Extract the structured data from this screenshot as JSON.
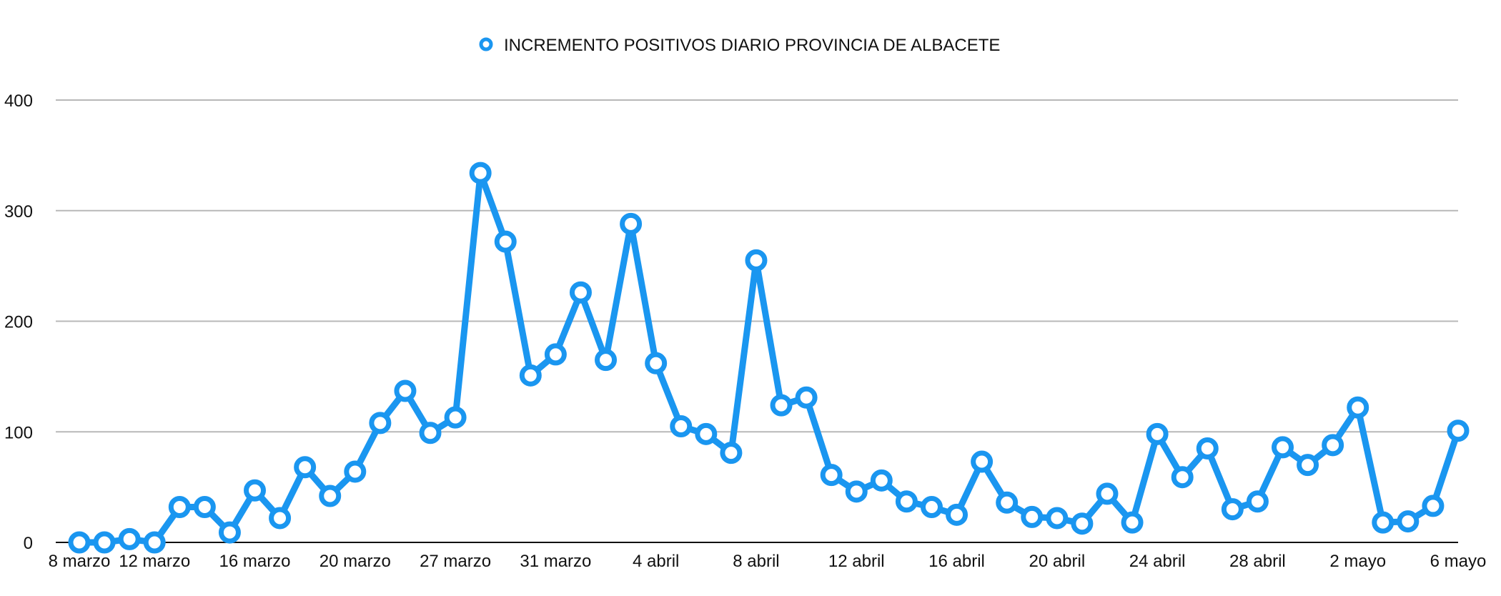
{
  "chart_data": {
    "type": "line",
    "title": "",
    "xlabel": "",
    "ylabel": "",
    "ylim": [
      0,
      400
    ],
    "yticks": [
      "0",
      "100",
      "200",
      "300",
      "400"
    ],
    "grid": true,
    "legend_position": "top-center",
    "color": "#1a96f0",
    "series": [
      {
        "name": "INCREMENTO POSITIVOS DIARIO PROVINCIA DE ALBACETE",
        "values": [
          0,
          0,
          3,
          0,
          32,
          32,
          9,
          47,
          22,
          68,
          42,
          64,
          108,
          137,
          99,
          113,
          334,
          272,
          151,
          170,
          226,
          165,
          288,
          162,
          105,
          98,
          81,
          255,
          124,
          131,
          61,
          46,
          56,
          37,
          32,
          25,
          73,
          36,
          23,
          22,
          17,
          44,
          18,
          98,
          59,
          85,
          30,
          37,
          86,
          70,
          88,
          122,
          18,
          19,
          33,
          101
        ]
      }
    ],
    "xtick_labels": [
      {
        "index": 0,
        "label": "8 marzo"
      },
      {
        "index": 3,
        "label": "12 marzo"
      },
      {
        "index": 7,
        "label": "16 marzo"
      },
      {
        "index": 11,
        "label": "20 marzo"
      },
      {
        "index": 15,
        "label": "27 marzo"
      },
      {
        "index": 19,
        "label": "31 marzo"
      },
      {
        "index": 23,
        "label": "4 abril"
      },
      {
        "index": 27,
        "label": "8 abril"
      },
      {
        "index": 31,
        "label": "12 abril"
      },
      {
        "index": 35,
        "label": "16 abril"
      },
      {
        "index": 39,
        "label": "20 abril"
      },
      {
        "index": 43,
        "label": "24 abril"
      },
      {
        "index": 47,
        "label": "28 abril"
      },
      {
        "index": 51,
        "label": "2 mayo"
      },
      {
        "index": 55,
        "label": "6 mayo"
      }
    ]
  }
}
